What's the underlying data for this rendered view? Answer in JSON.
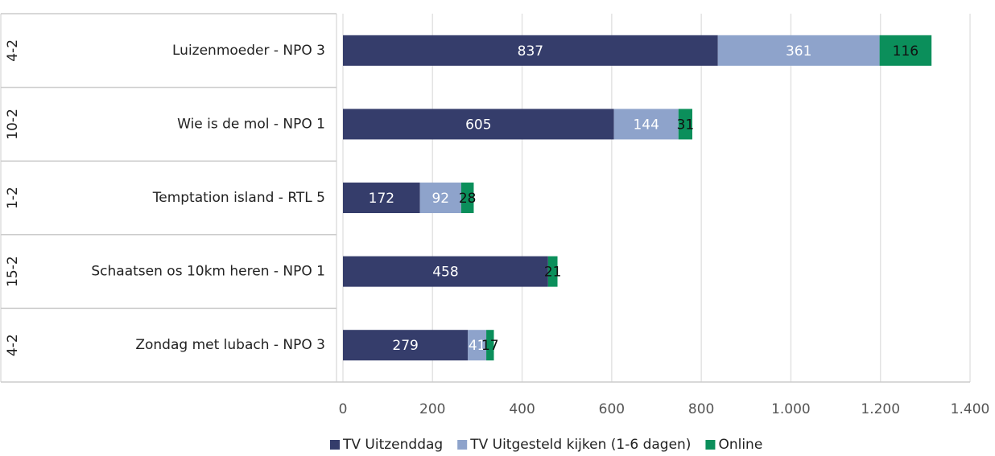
{
  "chart_data": {
    "type": "stacked_barh",
    "categories": [
      "Luizenmoeder - NPO 3",
      "Wie is de mol - NPO 1",
      "Temptation island - RTL 5",
      "Schaatsen os 10km heren - NPO 1",
      "Zondag met lubach - NPO 3"
    ],
    "dates": [
      "4-2",
      "10-2",
      "1-2",
      "15-2",
      "4-2"
    ],
    "series": [
      {
        "name": "TV Uitzenddag",
        "color": "#353d6b",
        "label_color": "#ffffff",
        "values": [
          837,
          605,
          172,
          458,
          279
        ]
      },
      {
        "name": "TV Uitgesteld kijken (1-6 dagen)",
        "color": "#8ea3cb",
        "label_color": "#ffffff",
        "values": [
          361,
          144,
          92,
          null,
          41
        ]
      },
      {
        "name": "Online",
        "color": "#0b8f5b",
        "label_color": "#111111",
        "values": [
          116,
          31,
          28,
          21,
          17
        ]
      }
    ],
    "xlim": [
      0,
      1400
    ],
    "xticks": [
      0,
      200,
      400,
      600,
      800,
      {
        "value": 1000,
        "label": "1.000"
      },
      {
        "value": 1200,
        "label": "1.200"
      },
      {
        "value": 1400,
        "label": "1.400"
      }
    ],
    "grid": true,
    "legend": "bottom"
  }
}
